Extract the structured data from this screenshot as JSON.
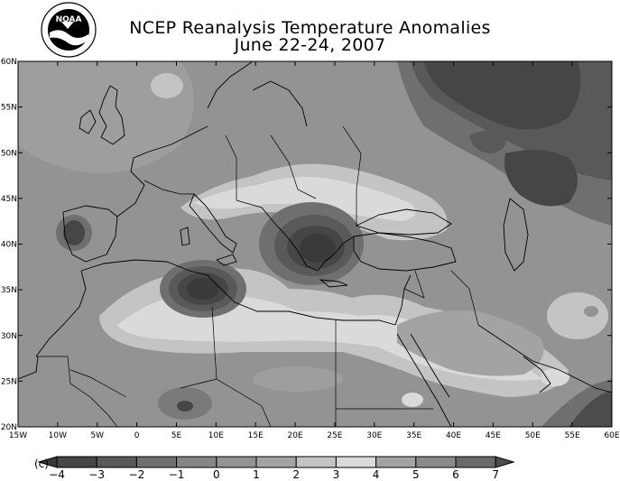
{
  "title": {
    "line1": "NCEP Reanalysis Temperature Anomalies",
    "line2": "June 22-24, 2007"
  },
  "logo": {
    "text": "NOAA",
    "ring_text": "U.S. DEPARTMENT OF COMMERCE · NATIONAL OCEANIC AND ATMOSPHERIC ADMINISTRATION"
  },
  "colorbar": {
    "unit": "(c)",
    "labels": [
      "-4",
      "-3",
      "-2",
      "-1",
      "0",
      "1",
      "2",
      "3",
      "4",
      "5",
      "6",
      "7"
    ],
    "fill_colors": [
      "#3a3a3a",
      "#464646",
      "#595959",
      "#6f6f6f",
      "#868686",
      "#939393",
      "#a3a3a3",
      "#c4c4c4",
      "#dadada",
      "#a3a3a3",
      "#8a8a8a",
      "#6a6a6a",
      "#4c4c4c"
    ]
  },
  "map": {
    "lon_range": [
      -15,
      60
    ],
    "lat_range": [
      20,
      60
    ],
    "lon_labels": [
      "15W",
      "10W",
      "5W",
      "0",
      "5E",
      "10E",
      "15E",
      "20E",
      "25E",
      "30E",
      "35E",
      "40E",
      "45E",
      "50E",
      "55E",
      "60E"
    ],
    "lat_labels": [
      "20N",
      "25N",
      "30N",
      "35N",
      "40N",
      "45N",
      "50N",
      "55N",
      "60N"
    ],
    "background_anomaly": "#939393",
    "anomaly_regions": [
      {
        "name": "north-africa-warm-band",
        "color": "#c4c4c4"
      },
      {
        "name": "balkans-warm-band",
        "color": "#dadada"
      },
      {
        "name": "tunisia-cold-core",
        "color": "#3a3a3a"
      },
      {
        "name": "greece-cold-core",
        "color": "#3a3a3a"
      },
      {
        "name": "russia-cold-region",
        "color": "#464646"
      },
      {
        "name": "iberia-cold-spot",
        "color": "#464646"
      },
      {
        "name": "arabia-warm-region",
        "color": "#c4c4c4"
      },
      {
        "name": "persian-gulf-dark",
        "color": "#4c4c4c"
      }
    ]
  }
}
